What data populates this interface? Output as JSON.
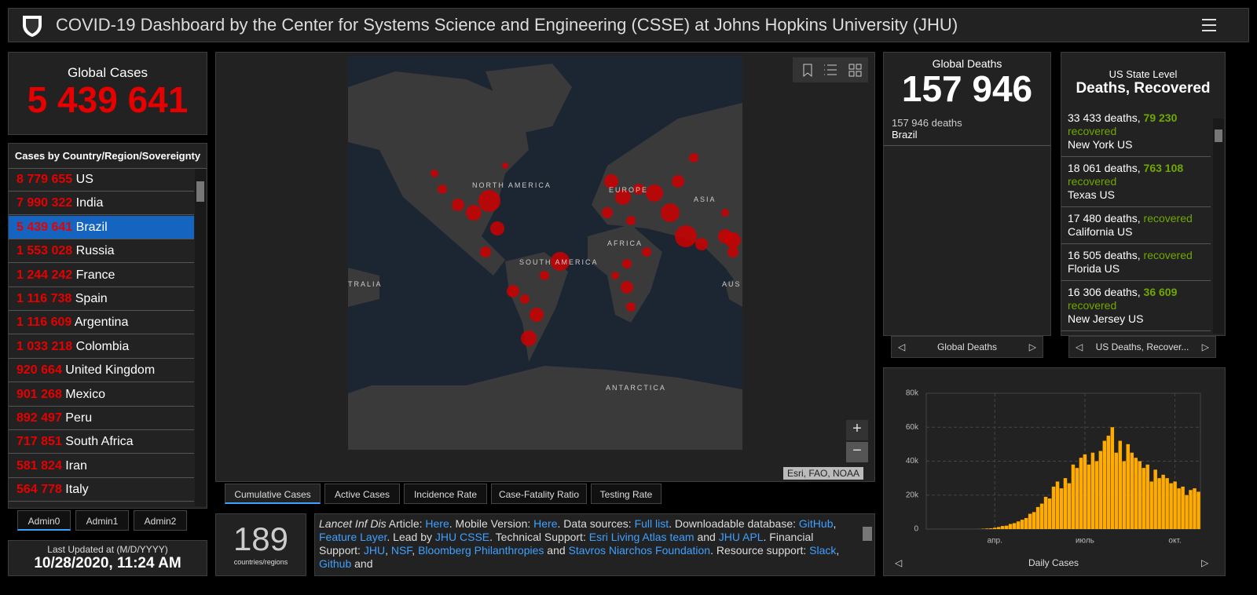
{
  "header": {
    "title": "COVID-19 Dashboard by the Center for Systems Science and Engineering (CSSE) at Johns Hopkins University (JHU)"
  },
  "global_cases": {
    "label": "Global Cases",
    "value": "5 439 641"
  },
  "country_list": {
    "title": "Cases by Country/Region/Sovereignty",
    "selected": 2,
    "items": [
      {
        "value": "8 779 655",
        "name": "US"
      },
      {
        "value": "7 990 322",
        "name": "India"
      },
      {
        "value": "5 439 641",
        "name": "Brazil"
      },
      {
        "value": "1 553 028",
        "name": "Russia"
      },
      {
        "value": "1 244 242",
        "name": "France"
      },
      {
        "value": "1 116 738",
        "name": "Spain"
      },
      {
        "value": "1 116 609",
        "name": "Argentina"
      },
      {
        "value": "1 033 218",
        "name": "Colombia"
      },
      {
        "value": "920 664",
        "name": "United Kingdom"
      },
      {
        "value": "901 268",
        "name": "Mexico"
      },
      {
        "value": "892 497",
        "name": "Peru"
      },
      {
        "value": "717 851",
        "name": "South Africa"
      },
      {
        "value": "581 824",
        "name": "Iran"
      },
      {
        "value": "564 778",
        "name": "Italy"
      }
    ]
  },
  "admin_tabs": [
    "Admin0",
    "Admin1",
    "Admin2"
  ],
  "last_updated": {
    "label": "Last Updated at (M/D/YYYY)",
    "value": "10/28/2020, 11:24 AM"
  },
  "map": {
    "labels": [
      "NORTH AMERICA",
      "EUROPE",
      "ASIA",
      "AFRICA",
      "SOUTH AMERICA",
      "TRALIA",
      "AUS",
      "ANTARCTICA"
    ],
    "attribution": "Esri, FAO, NOAA",
    "tabs": [
      "Cumulative Cases",
      "Active Cases",
      "Incidence Rate",
      "Case-Fatality Ratio",
      "Testing Rate"
    ],
    "active_tab": 0
  },
  "count": {
    "value": "189",
    "label": "countries/regions"
  },
  "info": {
    "parts": [
      {
        "text": "Lancet Inf Dis",
        "italic": true
      },
      {
        "text": " Article: "
      },
      {
        "text": "Here",
        "link": true
      },
      {
        "text": ". Mobile Version: "
      },
      {
        "text": "Here",
        "link": true
      },
      {
        "text": ". Data sources: "
      },
      {
        "text": "Full list",
        "link": true
      },
      {
        "text": ". Downloadable database: "
      },
      {
        "text": "GitHub",
        "link": true
      },
      {
        "text": ", "
      },
      {
        "text": "Feature Layer",
        "link": true
      },
      {
        "text": ". Lead by "
      },
      {
        "text": "JHU CSSE",
        "link": true
      },
      {
        "text": ". Technical Support: "
      },
      {
        "text": "Esri Living Atlas team",
        "link": true
      },
      {
        "text": " and "
      },
      {
        "text": "JHU APL",
        "link": true
      },
      {
        "text": ". Financial Support: "
      },
      {
        "text": "JHU",
        "link": true
      },
      {
        "text": ", "
      },
      {
        "text": "NSF",
        "link": true
      },
      {
        "text": ", "
      },
      {
        "text": "Bloomberg Philanthropies",
        "link": true
      },
      {
        "text": " and "
      },
      {
        "text": "Stavros Niarchos Foundation",
        "link": true
      },
      {
        "text": ". Resource support: "
      },
      {
        "text": "Slack",
        "link": true
      },
      {
        "text": ", "
      },
      {
        "text": "Github",
        "link": true
      },
      {
        "text": " and"
      }
    ]
  },
  "global_deaths": {
    "label": "Global Deaths",
    "value": "157 946",
    "items": [
      {
        "deaths": "157 946 deaths",
        "place": "Brazil"
      }
    ],
    "footer": "Global Deaths"
  },
  "us_state": {
    "subtitle": "US State Level",
    "title": "Deaths, Recovered",
    "footer": "US Deaths, Recover...",
    "items": [
      {
        "deaths": "33 433 deaths,",
        "recovered": "79 230",
        "recovered_label": "recovered",
        "place": "New York US"
      },
      {
        "deaths": "18 061 deaths,",
        "recovered": "763 108",
        "recovered_label": "recovered",
        "place": "Texas US"
      },
      {
        "deaths": "17 480 deaths,",
        "recovered_label": "recovered",
        "place": "California US"
      },
      {
        "deaths": "16 505 deaths,",
        "recovered_label": "recovered",
        "place": "Florida US"
      },
      {
        "deaths": "16 306 deaths,",
        "recovered": "36 609",
        "recovered_label": "recovered",
        "place": "New Jersey US"
      }
    ]
  },
  "chart_data": {
    "type": "bar",
    "title": "Daily Cases",
    "color": "#ffab00",
    "grid": true,
    "categories": [
      null,
      null,
      null,
      null,
      null,
      null,
      null,
      null,
      null,
      null,
      null,
      null,
      null,
      null,
      null,
      null,
      null,
      "апр.",
      null,
      null,
      null,
      null,
      null,
      null,
      null,
      null,
      null,
      null,
      null,
      null,
      null,
      null,
      null,
      null,
      null,
      null,
      null,
      null,
      null,
      null,
      "июль",
      null,
      null,
      null,
      null,
      null,
      null,
      null,
      null,
      null,
      null,
      null,
      null,
      null,
      null,
      null,
      null,
      null,
      null,
      null,
      null,
      null,
      null,
      "окт.",
      null,
      null,
      null,
      null,
      null,
      null
    ],
    "values": [
      0,
      0,
      0,
      0,
      0,
      0,
      0,
      0,
      0,
      0,
      0,
      0,
      10,
      50,
      200,
      350,
      450,
      800,
      1200,
      1800,
      2000,
      3000,
      3500,
      4500,
      5500,
      6500,
      9000,
      10000,
      13000,
      15000,
      19000,
      18000,
      25000,
      28000,
      24000,
      30000,
      27000,
      38000,
      36000,
      42000,
      44000,
      38000,
      45000,
      40000,
      46000,
      52000,
      55000,
      60000,
      45000,
      52000,
      40000,
      50000,
      45000,
      42000,
      40000,
      36000,
      38000,
      28000,
      35000,
      30000,
      32000,
      30000,
      27000,
      28000,
      24000,
      25000,
      20000,
      23000,
      24000,
      22000
    ],
    "ylim": [
      0,
      80000
    ],
    "yticks": [
      0,
      {
        "value": 20000,
        "label": "20k"
      },
      {
        "value": 40000,
        "label": "40k"
      },
      {
        "value": 60000,
        "label": "60k"
      },
      {
        "value": 80000,
        "label": "80k"
      }
    ]
  }
}
